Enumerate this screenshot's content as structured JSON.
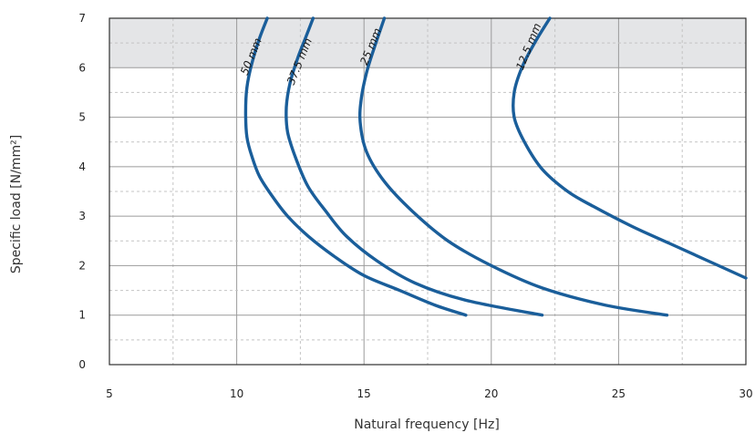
{
  "chart_data": {
    "type": "line",
    "title": "",
    "xlabel": "Natural frequency [Hz]",
    "ylabel": "Specific load [N/mm²]",
    "xlim": [
      5,
      30
    ],
    "ylim": [
      0,
      7
    ],
    "x_ticks": [
      "5",
      "10",
      "15",
      "20",
      "25",
      "30"
    ],
    "y_ticks": [
      "0",
      "1",
      "2",
      "3",
      "4",
      "5",
      "6",
      "7"
    ],
    "grid": "major solid, minor dashed",
    "shaded_band": {
      "y_from": 6,
      "y_to": 7,
      "color": "#e4e5e7"
    },
    "line_color": "#1a5e9a",
    "series": [
      {
        "name": "50 mm",
        "points": [
          [
            19.0,
            1.0
          ],
          [
            17.8,
            1.2
          ],
          [
            16.4,
            1.5
          ],
          [
            15.0,
            1.8
          ],
          [
            13.8,
            2.2
          ],
          [
            12.8,
            2.6
          ],
          [
            12.0,
            3.0
          ],
          [
            11.4,
            3.4
          ],
          [
            10.9,
            3.8
          ],
          [
            10.6,
            4.2
          ],
          [
            10.4,
            4.6
          ],
          [
            10.35,
            5.1
          ],
          [
            10.4,
            5.6
          ],
          [
            10.6,
            6.1
          ],
          [
            10.9,
            6.6
          ],
          [
            11.2,
            7.0
          ]
        ]
      },
      {
        "name": "37.5 mm",
        "points": [
          [
            22.0,
            1.0
          ],
          [
            19.0,
            1.3
          ],
          [
            17.0,
            1.65
          ],
          [
            15.5,
            2.1
          ],
          [
            14.3,
            2.6
          ],
          [
            13.5,
            3.1
          ],
          [
            12.8,
            3.6
          ],
          [
            12.3,
            4.2
          ],
          [
            12.0,
            4.7
          ],
          [
            11.95,
            5.2
          ],
          [
            12.1,
            5.7
          ],
          [
            12.4,
            6.2
          ],
          [
            12.7,
            6.6
          ],
          [
            13.0,
            7.0
          ]
        ]
      },
      {
        "name": "25 mm",
        "points": [
          [
            26.9,
            1.0
          ],
          [
            24.5,
            1.2
          ],
          [
            22.0,
            1.55
          ],
          [
            20.0,
            2.0
          ],
          [
            18.3,
            2.5
          ],
          [
            16.9,
            3.1
          ],
          [
            15.8,
            3.7
          ],
          [
            15.1,
            4.3
          ],
          [
            14.85,
            4.9
          ],
          [
            14.9,
            5.4
          ],
          [
            15.1,
            5.9
          ],
          [
            15.4,
            6.4
          ],
          [
            15.8,
            7.0
          ]
        ]
      },
      {
        "name": "12.5 mm",
        "points": [
          [
            30.0,
            1.75
          ],
          [
            28.5,
            2.1
          ],
          [
            27.0,
            2.45
          ],
          [
            25.5,
            2.8
          ],
          [
            24.0,
            3.2
          ],
          [
            23.0,
            3.5
          ],
          [
            22.0,
            3.95
          ],
          [
            21.3,
            4.5
          ],
          [
            20.9,
            5.0
          ],
          [
            20.9,
            5.5
          ],
          [
            21.2,
            6.0
          ],
          [
            21.7,
            6.5
          ],
          [
            22.3,
            7.0
          ]
        ]
      }
    ],
    "curve_labels": [
      {
        "text": "50 mm",
        "x": 10.7,
        "y": 6.2
      },
      {
        "text": "37.5 mm",
        "x": 12.6,
        "y": 6.1
      },
      {
        "text": "25 mm",
        "x": 15.4,
        "y": 6.4
      },
      {
        "text": "12.5 mm",
        "x": 21.6,
        "y": 6.4
      }
    ]
  }
}
